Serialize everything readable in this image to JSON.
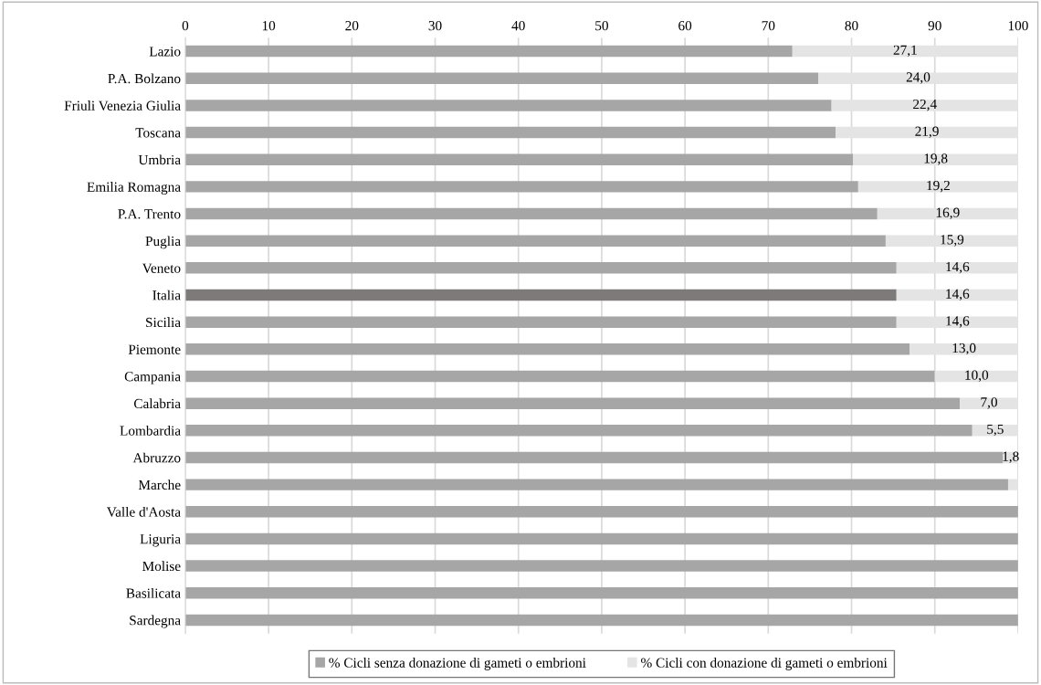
{
  "chart_data": {
    "type": "bar",
    "orientation": "horizontal",
    "stacked": true,
    "categories": [
      "Lazio",
      "P.A. Bolzano",
      "Friuli Venezia Giulia",
      "Toscana",
      "Umbria",
      "Emilia Romagna",
      "P.A. Trento",
      "Puglia",
      "Veneto",
      "Italia",
      "Sicilia",
      "Piemonte",
      "Campania",
      "Calabria",
      "Lombardia",
      "Abruzzo",
      "Marche",
      "Valle d'Aosta",
      "Liguria",
      "Molise",
      "Basilicata",
      "Sardegna"
    ],
    "series": [
      {
        "name": "% Cicli senza donazione di gameti o embrioni",
        "color": "#a6a6a6",
        "colors": [
          "#a6a6a6",
          "#a6a6a6",
          "#a6a6a6",
          "#a6a6a6",
          "#a6a6a6",
          "#a6a6a6",
          "#a6a6a6",
          "#a6a6a6",
          "#a6a6a6",
          "#7f7a7a",
          "#a6a6a6",
          "#a6a6a6",
          "#a6a6a6",
          "#a6a6a6",
          "#a6a6a6",
          "#a6a6a6",
          "#a6a6a6",
          "#a6a6a6",
          "#a6a6a6",
          "#a6a6a6",
          "#a6a6a6",
          "#a6a6a6"
        ],
        "values": [
          72.9,
          76.0,
          77.6,
          78.1,
          80.2,
          80.8,
          83.1,
          84.1,
          85.4,
          85.4,
          85.4,
          87.0,
          90.0,
          93.0,
          94.5,
          98.2,
          98.8,
          100,
          100,
          100,
          100,
          100
        ]
      },
      {
        "name": "% Cicli con donazione di gameti o embrioni",
        "color": "#e4e4e4",
        "values": [
          27.1,
          24.0,
          22.4,
          21.9,
          19.8,
          19.2,
          16.9,
          15.9,
          14.6,
          14.6,
          14.6,
          13.0,
          10.0,
          7.0,
          5.5,
          1.8,
          1.2,
          0,
          0,
          0,
          0,
          0
        ],
        "value_labels": [
          "27,1",
          "24,0",
          "22,4",
          "21,9",
          "19,8",
          "19,2",
          "16,9",
          "15,9",
          "14,6",
          "14,6",
          "14,6",
          "13,0",
          "10,0",
          "7,0",
          "5,5",
          "1,8",
          null,
          null,
          null,
          null,
          null,
          null
        ]
      }
    ],
    "xlim": [
      0,
      100
    ],
    "xticks": [
      0,
      10,
      20,
      30,
      40,
      50,
      60,
      70,
      80,
      90,
      100
    ],
    "grid": "x",
    "legend": "bottom"
  }
}
